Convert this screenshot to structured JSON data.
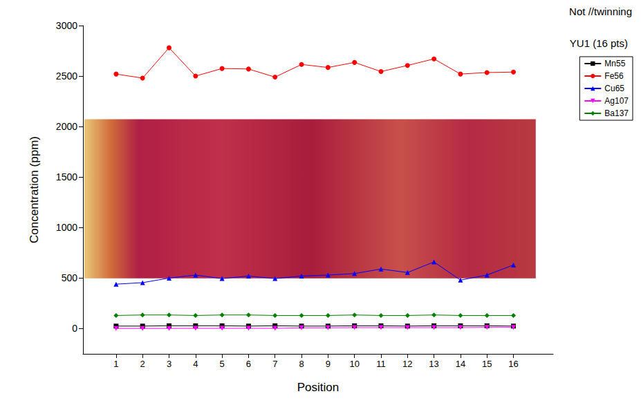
{
  "chart_data": {
    "type": "line",
    "title": "Not //twinning",
    "legend_title": "YU1 (16 pts)",
    "x_label": "Position",
    "y_label": "Concentration (ppm)",
    "x": [
      1,
      2,
      3,
      4,
      5,
      6,
      7,
      8,
      9,
      10,
      11,
      12,
      13,
      14,
      15,
      16
    ],
    "xlim": [
      -0.25,
      17.5
    ],
    "xticks": [
      1,
      2,
      3,
      4,
      5,
      6,
      7,
      8,
      9,
      10,
      11,
      12,
      13,
      14,
      15,
      16
    ],
    "ylim": [
      -250,
      3000
    ],
    "yticks": [
      0,
      500,
      1000,
      1500,
      2000,
      2500,
      3000
    ],
    "grid": false,
    "legend": "right",
    "series": [
      {
        "name": "Mn55",
        "color": "#000000",
        "marker": "square",
        "values": [
          25,
          25,
          28,
          28,
          28,
          25,
          28,
          25,
          25,
          28,
          28,
          25,
          28,
          28,
          28,
          25
        ]
      },
      {
        "name": "Fe56",
        "color": "#ff0000",
        "marker": "circle",
        "values": [
          2520,
          2480,
          2780,
          2500,
          2575,
          2570,
          2490,
          2615,
          2585,
          2635,
          2545,
          2605,
          2670,
          2520,
          2535,
          2540
        ]
      },
      {
        "name": "Cu65",
        "color": "#0000ff",
        "marker": "triangle",
        "values": [
          440,
          455,
          500,
          530,
          495,
          520,
          495,
          520,
          530,
          545,
          590,
          555,
          660,
          480,
          530,
          630
        ]
      },
      {
        "name": "Ag107",
        "color": "#ff00ff",
        "marker": "triangle-down",
        "values": [
          2,
          2,
          2,
          3,
          3,
          3,
          3,
          8,
          8,
          10,
          10,
          10,
          10,
          10,
          12,
          12
        ]
      },
      {
        "name": "Ba137",
        "color": "#008000",
        "marker": "diamond",
        "values": [
          130,
          135,
          135,
          130,
          135,
          135,
          130,
          130,
          130,
          135,
          130,
          130,
          135,
          130,
          130,
          130
        ]
      }
    ]
  }
}
